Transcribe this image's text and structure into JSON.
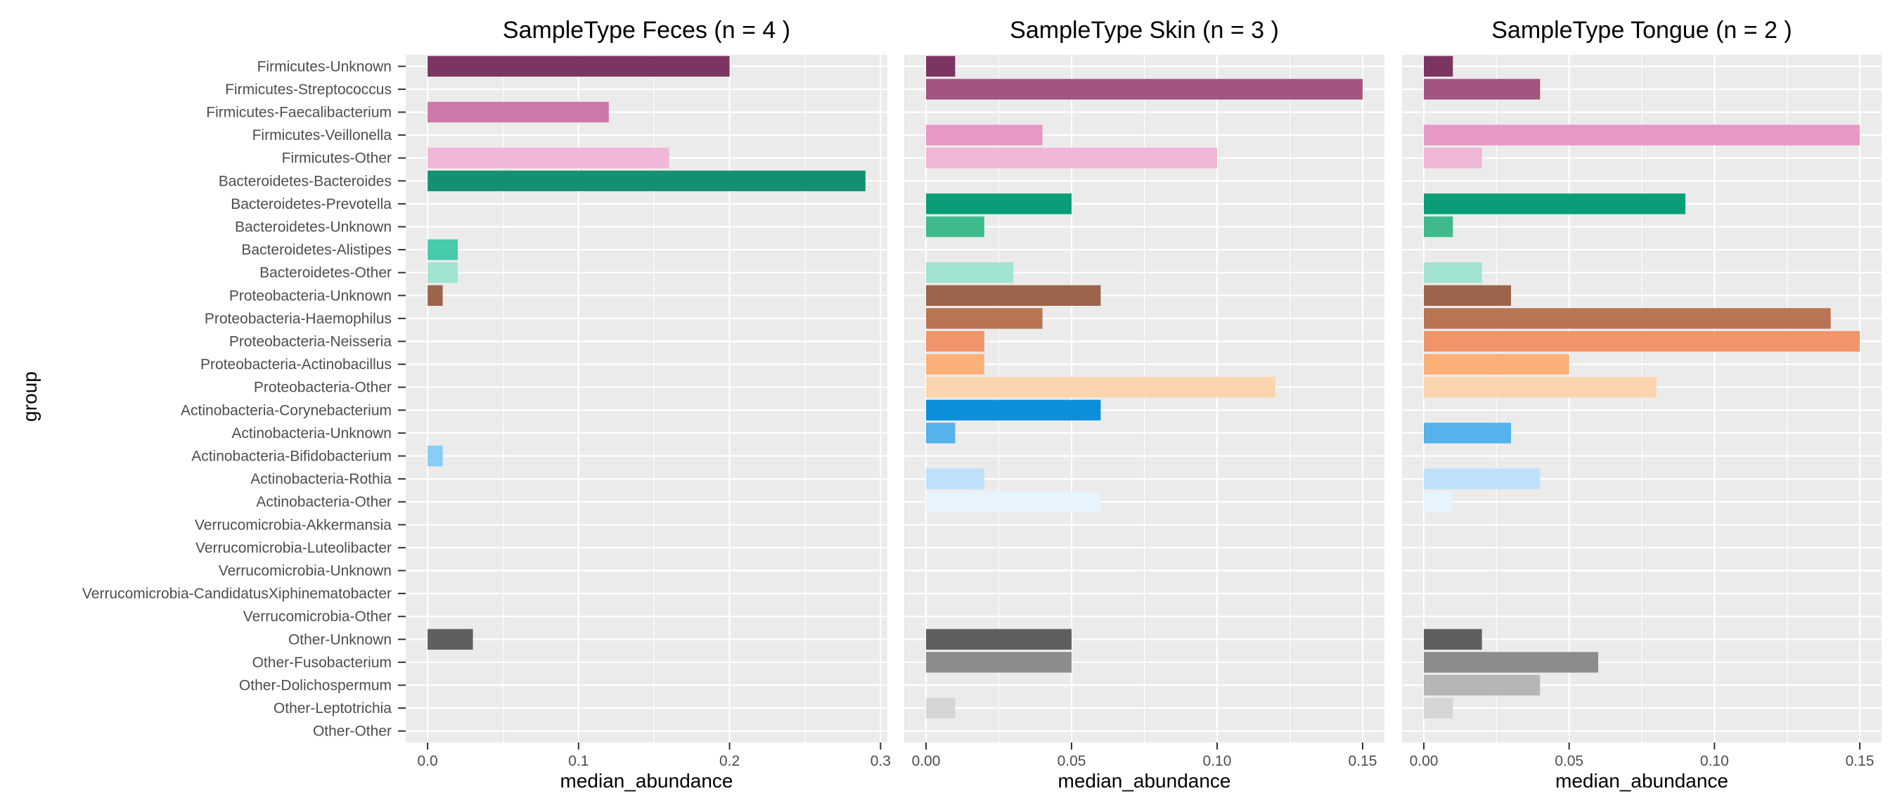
{
  "chart_data": {
    "type": "bar",
    "orientation": "horizontal",
    "ylabel": "group",
    "categories": [
      "Firmicutes-Unknown",
      "Firmicutes-Streptococcus",
      "Firmicutes-Faecalibacterium",
      "Firmicutes-Veillonella",
      "Firmicutes-Other",
      "Bacteroidetes-Bacteroides",
      "Bacteroidetes-Prevotella",
      "Bacteroidetes-Unknown",
      "Bacteroidetes-Alistipes",
      "Bacteroidetes-Other",
      "Proteobacteria-Unknown",
      "Proteobacteria-Haemophilus",
      "Proteobacteria-Neisseria",
      "Proteobacteria-Actinobacillus",
      "Proteobacteria-Other",
      "Actinobacteria-Corynebacterium",
      "Actinobacteria-Unknown",
      "Actinobacteria-Bifidobacterium",
      "Actinobacteria-Rothia",
      "Actinobacteria-Other",
      "Verrucomicrobia-Akkermansia",
      "Verrucomicrobia-Luteolibacter",
      "Verrucomicrobia-Unknown",
      "Verrucomicrobia-CandidatusXiphinematobacter",
      "Verrucomicrobia-Other",
      "Other-Unknown",
      "Other-Fusobacterium",
      "Other-Dolichospermum",
      "Other-Leptotrichia",
      "Other-Other"
    ],
    "colors": [
      "#7b3560",
      "#a3547f",
      "#cd78a9",
      "#e898c5",
      "#f0b7d8",
      "#158f74",
      "#099e77",
      "#3fbb8b",
      "#48caac",
      "#a2e3d3",
      "#9c644b",
      "#b87453",
      "#f1946a",
      "#fbb077",
      "#fcd4ad",
      "#0c8fdb",
      "#55b2ea",
      "#87cdf7",
      "#bde1fb",
      "#e7f3fd",
      "#cccccc",
      "#cccccc",
      "#cccccc",
      "#cccccc",
      "#cccccc",
      "#5f5f5f",
      "#8c8c8c",
      "#b6b6b6",
      "#d6d6d6",
      "#eeeeee"
    ],
    "panels": [
      {
        "title": "SampleType Feces (n = 4 )",
        "xlabel": "median_abundance",
        "xlim": [
          -0.0145,
          0.3045
        ],
        "ticks": [
          0.0,
          0.1,
          0.2,
          0.3
        ],
        "tick_labels": [
          "0.0",
          "0.1",
          "0.2",
          "0.3"
        ],
        "values": [
          0.2,
          0,
          0.12,
          0,
          0.16,
          0.29,
          0,
          0,
          0.02,
          0.02,
          0.01,
          0,
          0,
          0,
          0,
          0,
          0,
          0.01,
          0,
          0,
          0,
          0,
          0,
          0,
          0,
          0.03,
          0,
          0,
          0,
          0
        ]
      },
      {
        "title": "SampleType Skin (n = 3 )",
        "xlabel": "median_abundance",
        "xlim": [
          -0.0075,
          0.1575
        ],
        "ticks": [
          0.0,
          0.05,
          0.1,
          0.15
        ],
        "tick_labels": [
          "0.00",
          "0.05",
          "0.10",
          "0.15"
        ],
        "values": [
          0.01,
          0.15,
          0,
          0.04,
          0.1,
          0,
          0.05,
          0.02,
          0,
          0.03,
          0.06,
          0.04,
          0.02,
          0.02,
          0.12,
          0.06,
          0.01,
          0,
          0.02,
          0.06,
          0,
          0,
          0,
          0,
          0,
          0.05,
          0.05,
          0,
          0.01,
          0
        ]
      },
      {
        "title": "SampleType Tongue (n = 2 )",
        "xlabel": "median_abundance",
        "xlim": [
          -0.0075,
          0.1575
        ],
        "ticks": [
          0.0,
          0.05,
          0.1,
          0.15
        ],
        "tick_labels": [
          "0.00",
          "0.05",
          "0.10",
          "0.15"
        ],
        "values": [
          0.01,
          0.04,
          0,
          0.15,
          0.02,
          0,
          0.09,
          0.01,
          0,
          0.02,
          0.03,
          0.14,
          0.15,
          0.05,
          0.08,
          0,
          0.03,
          0,
          0.04,
          0.01,
          0,
          0,
          0,
          0,
          0,
          0.02,
          0.06,
          0.04,
          0.01,
          0
        ]
      }
    ]
  }
}
